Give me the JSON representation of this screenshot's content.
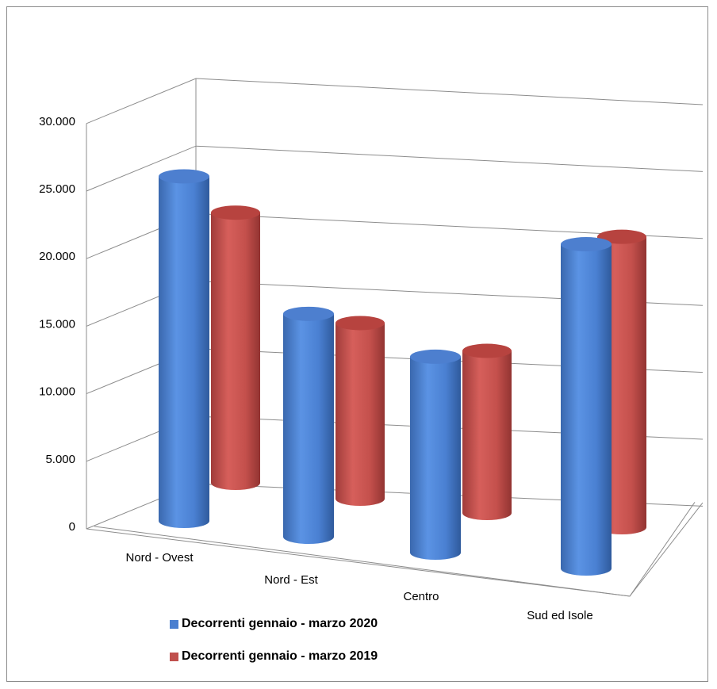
{
  "chart_data": {
    "type": "bar",
    "style": "3d-cylinder",
    "categories": [
      "Nord - Ovest",
      "Nord - Est",
      "Centro",
      "Sud ed Isole"
    ],
    "series": [
      {
        "name": "Decorrenti gennaio - marzo 2020",
        "color": "#4a7fd0",
        "values": [
          25500,
          16500,
          14500,
          24000
        ]
      },
      {
        "name": "Decorrenti gennaio - marzo 2019",
        "color": "#c0504d",
        "values": [
          20000,
          13000,
          12000,
          21500
        ]
      }
    ],
    "y_ticks": [
      "0",
      "5.000",
      "10.000",
      "15.000",
      "20.000",
      "25.000",
      "30.000"
    ],
    "ylim": [
      0,
      30000
    ],
    "grid": true,
    "legend_position": "bottom-left"
  }
}
